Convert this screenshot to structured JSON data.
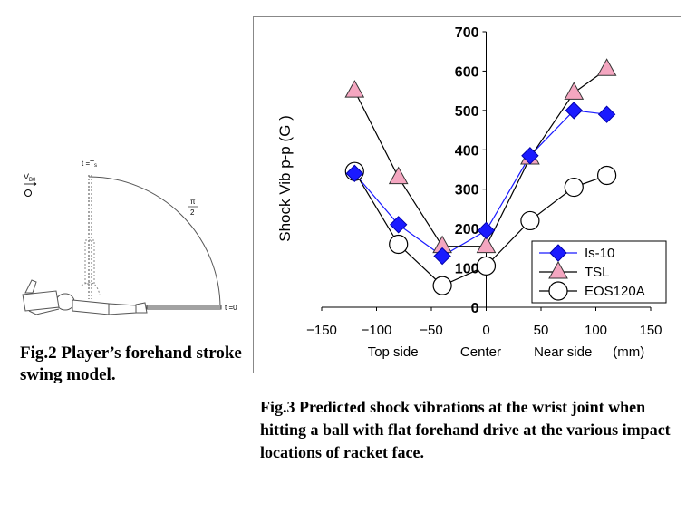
{
  "fig2": {
    "labels": {
      "velocity": "V",
      "velocity_sub": "B0",
      "top_time": "t =T",
      "top_time_sub": "s",
      "angle_num": "π",
      "angle_den": "2",
      "end_time": "t =0"
    },
    "caption": "Fig.2 Player’s forehand stroke swing model."
  },
  "fig3": {
    "caption": "Fig.3 Predicted shock vibrations at the wrist joint when hitting a ball with flat forehand drive at the various impact locations of racket face."
  },
  "chart_data": {
    "type": "line",
    "ylabel": "Shock Vib p-p (G )",
    "xlim": [
      -150,
      150
    ],
    "ylim": [
      0,
      700
    ],
    "x_ticks": [
      -150,
      -100,
      -50,
      0,
      50,
      100,
      150
    ],
    "y_ticks": [
      0,
      100,
      200,
      300,
      400,
      500,
      600,
      700
    ],
    "x_region_labels": [
      "Top side",
      "Center",
      "Near side",
      "(mm)"
    ],
    "legend_position": "bottom-right",
    "grid": false,
    "series": [
      {
        "name": "Is-10",
        "marker": "diamond",
        "color": "#1a1aff",
        "x": [
          -120,
          -80,
          -40,
          0,
          40,
          80,
          110
        ],
        "y": [
          340,
          210,
          130,
          195,
          385,
          500,
          490
        ]
      },
      {
        "name": "TSL",
        "marker": "triangle",
        "color": "#f4a6c0",
        "x": [
          -120,
          -80,
          -40,
          0,
          40,
          80,
          110
        ],
        "y": [
          550,
          330,
          155,
          155,
          380,
          545,
          605
        ]
      },
      {
        "name": "EOS120A",
        "marker": "circle",
        "color": "#ffffff",
        "x": [
          -120,
          -80,
          -40,
          0,
          40,
          80,
          110
        ],
        "y": [
          345,
          160,
          55,
          105,
          220,
          305,
          335
        ]
      }
    ]
  }
}
